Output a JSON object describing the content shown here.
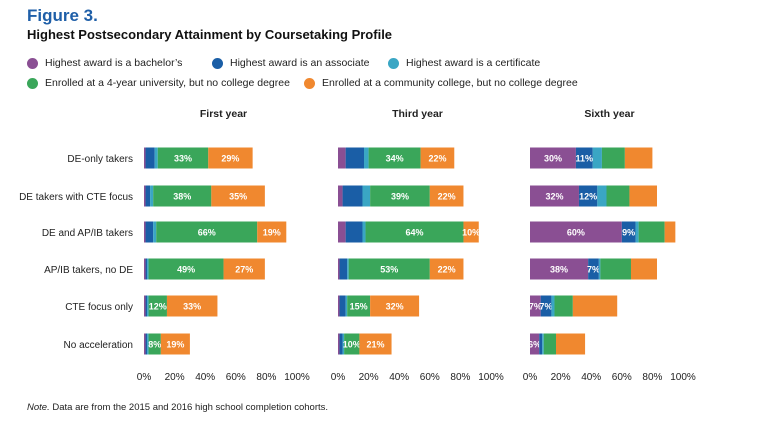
{
  "figure": {
    "label": "Figure 3.",
    "title": "Highest Postsecondary Attainment by Coursetaking Profile",
    "note_prefix": "Note.",
    "note_text": " Data are from the 2015 and 2016 high school completion cohorts."
  },
  "legend": [
    {
      "name": "Highest award is a bachelor’s",
      "color": "#8a4f93"
    },
    {
      "name": "Highest award is an associate",
      "color": "#1a5ea6"
    },
    {
      "name": "Highest award is a certificate",
      "color": "#3aa6c4"
    },
    {
      "name": "Enrolled at a 4-year university, but no college degree",
      "color": "#3aa65a"
    },
    {
      "name": "Enrolled at a community college, but no college degree",
      "color": "#f0882f"
    }
  ],
  "chart_data": {
    "type": "bar",
    "orientation": "horizontal",
    "stacked": true,
    "categories": [
      "DE-only takers",
      "DE takers with CTE focus",
      "DE and AP/IB takers",
      "AP/IB takers, no DE",
      "CTE focus only",
      "No acceleration"
    ],
    "x_ticks": [
      "0%",
      "20%",
      "40%",
      "60%",
      "80%",
      "100%"
    ],
    "xlim": [
      0,
      100
    ],
    "series_names": [
      "Highest award is a bachelor’s",
      "Highest award is an associate",
      "Highest award is a certificate",
      "Enrolled at a 4-year university, but no college degree",
      "Enrolled at a community college, but no college degree"
    ],
    "panels": [
      {
        "title": "First year",
        "values": [
          [
            1,
            6,
            2,
            33,
            29
          ],
          [
            1,
            3,
            2,
            38,
            35
          ],
          [
            1,
            5,
            2,
            66,
            19
          ],
          [
            1,
            1,
            1,
            49,
            27
          ],
          [
            1,
            1,
            1,
            12,
            33
          ],
          [
            1,
            1,
            1,
            8,
            19
          ]
        ],
        "labels": [
          [
            null,
            null,
            null,
            "33%",
            "29%"
          ],
          [
            null,
            null,
            null,
            "38%",
            "35%"
          ],
          [
            null,
            null,
            null,
            "66%",
            "19%"
          ],
          [
            null,
            null,
            null,
            "49%",
            "27%"
          ],
          [
            null,
            null,
            null,
            "12%",
            "33%"
          ],
          [
            null,
            null,
            null,
            "8%",
            "19%"
          ]
        ]
      },
      {
        "title": "Third year",
        "values": [
          [
            5,
            12,
            3,
            34,
            22
          ],
          [
            3,
            13,
            5,
            39,
            22
          ],
          [
            5,
            11,
            2,
            64,
            10
          ],
          [
            1,
            5,
            1,
            53,
            22
          ],
          [
            1,
            4,
            1,
            15,
            32
          ],
          [
            1,
            2,
            1,
            10,
            21
          ]
        ],
        "labels": [
          [
            null,
            null,
            null,
            "34%",
            "22%"
          ],
          [
            null,
            null,
            null,
            "39%",
            "22%"
          ],
          [
            null,
            null,
            null,
            "64%",
            "10%"
          ],
          [
            null,
            null,
            null,
            "53%",
            "22%"
          ],
          [
            null,
            null,
            null,
            "15%",
            "32%"
          ],
          [
            null,
            null,
            null,
            "10%",
            "21%"
          ]
        ]
      },
      {
        "title": "Sixth year",
        "values": [
          [
            30,
            11,
            6,
            15,
            18
          ],
          [
            32,
            12,
            6,
            15,
            18
          ],
          [
            60,
            9,
            2,
            17,
            7
          ],
          [
            38,
            7,
            1,
            20,
            17
          ],
          [
            7,
            7,
            2,
            12,
            29
          ],
          [
            6,
            2,
            1,
            8,
            19
          ]
        ],
        "labels": [
          [
            "30%",
            "11%",
            null,
            null,
            null
          ],
          [
            "32%",
            "12%",
            null,
            null,
            null
          ],
          [
            "60%",
            "9%",
            null,
            null,
            null
          ],
          [
            "38%",
            "7%",
            null,
            null,
            null
          ],
          [
            "7%",
            "7%",
            null,
            null,
            null
          ],
          [
            "6%",
            null,
            null,
            null,
            null
          ]
        ]
      }
    ]
  }
}
